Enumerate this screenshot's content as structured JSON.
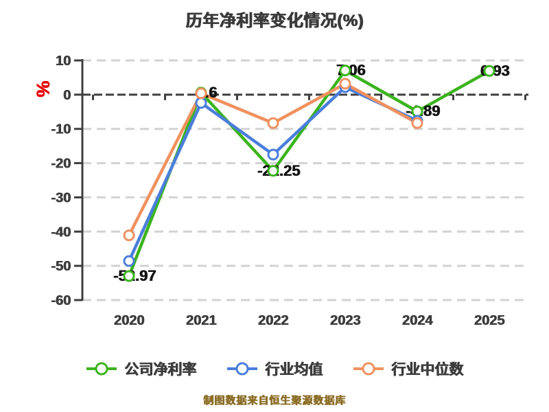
{
  "title": "历年净利率变化情况(%)",
  "caption": "制图数据来自恒生聚源数据库",
  "colors": {
    "company_line": "#3cb41e",
    "industry_mean_line": "#4a7edc",
    "industry_median_line": "#f0915f",
    "axis_dark": "#3f3f3f",
    "grid_light": "#d2d2d2",
    "tick_label": "#3c3c3c",
    "data_label": "#141414",
    "unit_label_red": "#e60000",
    "caption_olive": "#8c6e28",
    "marker_fill": "#ffffff"
  },
  "chart_data": {
    "type": "line",
    "title": "历年净利率变化情况(%)",
    "xlabel": "",
    "ylabel": "%",
    "categories": [
      "2020",
      "2021",
      "2022",
      "2023",
      "2024",
      "2025"
    ],
    "series": [
      {
        "name": "公司净利率",
        "color": "#3cb41e",
        "values": [
          -52.97,
          0.6,
          -22.25,
          7.06,
          -4.89,
          6.93
        ],
        "point_labels": [
          "-52.97",
          "0.6",
          "-22.25",
          "7.06",
          "-4.89",
          "6.93"
        ]
      },
      {
        "name": "行业均值",
        "color": "#4a7edc",
        "values": [
          -48.6,
          -2.4,
          -17.5,
          2.2,
          -7.6
        ],
        "point_labels": []
      },
      {
        "name": "行业中位数",
        "color": "#f0915f",
        "values": [
          -41.1,
          0.4,
          -8.3,
          3.2,
          -8.3
        ],
        "point_labels": []
      }
    ],
    "yticks": [
      10,
      0,
      -10,
      -20,
      -30,
      -40,
      -50,
      -60
    ],
    "ylim": [
      -60,
      10
    ],
    "grid": true,
    "grid_style": "dashed",
    "zero_axis_line": true,
    "legend_position": "bottom",
    "marker": "open-circle"
  }
}
